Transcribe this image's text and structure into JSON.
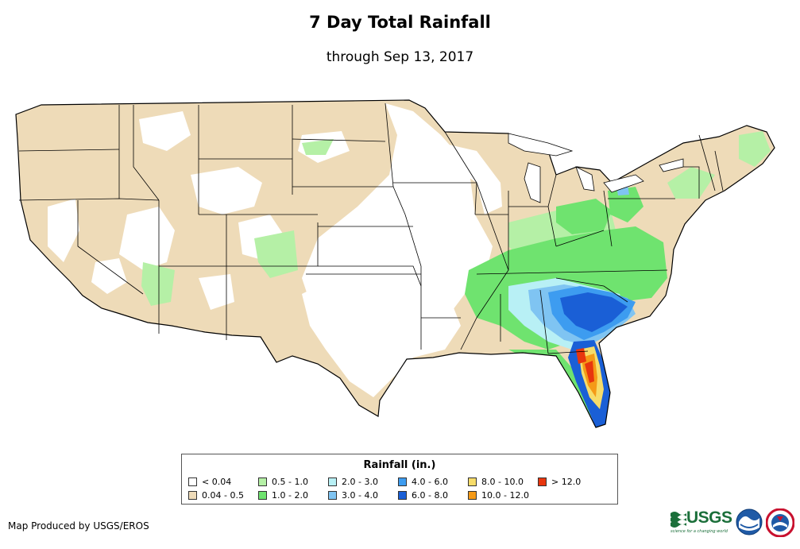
{
  "header": {
    "title": "7 Day Total Rainfall",
    "subtitle": "through Sep 13, 2017"
  },
  "legend": {
    "title": "Rainfall (in.)",
    "items": [
      {
        "label": "< 0.04",
        "color": "#ffffff"
      },
      {
        "label": "0.04 - 0.5",
        "color": "#eedbb8"
      },
      {
        "label": "0.5 - 1.0",
        "color": "#b5f0a6"
      },
      {
        "label": "1.0 - 2.0",
        "color": "#6fe36f"
      },
      {
        "label": "2.0 - 3.0",
        "color": "#b8f0f5"
      },
      {
        "label": "3.0 - 4.0",
        "color": "#7fc4f2"
      },
      {
        "label": "4.0 - 6.0",
        "color": "#3d9cf0"
      },
      {
        "label": "6.0 - 8.0",
        "color": "#1a5fd6"
      },
      {
        "label": "8.0 - 10.0",
        "color": "#f7dc6a"
      },
      {
        "label": "10.0 - 12.0",
        "color": "#f59a17"
      },
      {
        "label": "> 12.0",
        "color": "#e8360e"
      }
    ]
  },
  "footer": {
    "credit": "Map Produced by USGS/EROS",
    "usgs_label": "USGS",
    "usgs_tagline": "science for a changing world",
    "logos": [
      "usgs-logo",
      "noaa-logo",
      "nws-logo"
    ]
  }
}
